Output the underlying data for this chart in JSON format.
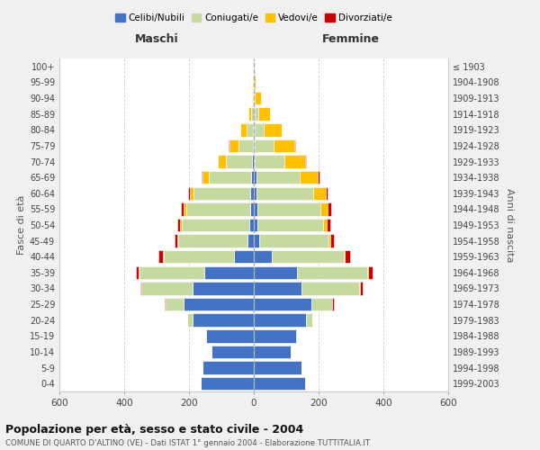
{
  "age_groups": [
    "0-4",
    "5-9",
    "10-14",
    "15-19",
    "20-24",
    "25-29",
    "30-34",
    "35-39",
    "40-44",
    "45-49",
    "50-54",
    "55-59",
    "60-64",
    "65-69",
    "70-74",
    "75-79",
    "80-84",
    "85-89",
    "90-94",
    "95-99",
    "100+"
  ],
  "birth_years": [
    "1999-2003",
    "1994-1998",
    "1989-1993",
    "1984-1988",
    "1979-1983",
    "1974-1978",
    "1969-1973",
    "1964-1968",
    "1959-1963",
    "1954-1958",
    "1949-1953",
    "1944-1948",
    "1939-1943",
    "1934-1938",
    "1929-1933",
    "1924-1928",
    "1919-1923",
    "1914-1918",
    "1909-1913",
    "1904-1908",
    "≤ 1903"
  ],
  "male_celibi": [
    165,
    158,
    130,
    148,
    188,
    218,
    188,
    152,
    60,
    20,
    15,
    12,
    10,
    8,
    5,
    3,
    2,
    0,
    0,
    0,
    0
  ],
  "male_coniugati": [
    0,
    0,
    0,
    2,
    18,
    55,
    158,
    202,
    218,
    212,
    208,
    196,
    176,
    130,
    80,
    45,
    20,
    8,
    2,
    1,
    0
  ],
  "male_vedovi": [
    0,
    0,
    0,
    0,
    0,
    0,
    0,
    1,
    2,
    3,
    5,
    8,
    12,
    20,
    25,
    28,
    20,
    10,
    3,
    1,
    0
  ],
  "male_divorziati": [
    0,
    0,
    0,
    0,
    0,
    2,
    5,
    10,
    15,
    10,
    8,
    8,
    5,
    3,
    2,
    1,
    0,
    0,
    0,
    0,
    0
  ],
  "female_celibi": [
    158,
    148,
    115,
    130,
    162,
    178,
    148,
    132,
    55,
    18,
    12,
    10,
    8,
    7,
    4,
    3,
    2,
    2,
    1,
    0,
    0
  ],
  "female_coniugati": [
    0,
    0,
    0,
    2,
    18,
    65,
    178,
    218,
    222,
    212,
    202,
    196,
    176,
    136,
    90,
    58,
    28,
    12,
    3,
    1,
    0
  ],
  "female_vedovi": [
    0,
    0,
    0,
    0,
    0,
    0,
    1,
    2,
    4,
    7,
    12,
    22,
    38,
    55,
    65,
    65,
    55,
    35,
    18,
    5,
    2
  ],
  "female_divorziati": [
    0,
    0,
    0,
    0,
    1,
    3,
    8,
    15,
    15,
    10,
    10,
    10,
    7,
    5,
    3,
    2,
    1,
    1,
    0,
    0,
    0
  ],
  "color_celibi": "#4472c4",
  "color_coniugati": "#c5d9a0",
  "color_vedovi": "#ffc000",
  "color_divorziati": "#cc0000",
  "xlim": 600,
  "title": "Popolazione per età, sesso e stato civile - 2004",
  "subtitle": "COMUNE DI QUARTO D'ALTINO (VE) - Dati ISTAT 1° gennaio 2004 - Elaborazione TUTTITALIA.IT",
  "ylabel": "Fasce di età",
  "right_ylabel": "Anni di nascita",
  "xlabel_left": "Maschi",
  "xlabel_right": "Femmine",
  "bg_color": "#f0f0f0",
  "plot_bg_color": "#ffffff",
  "legend_labels": [
    "Celibi/Nubili",
    "Coniugati/e",
    "Vedovi/e",
    "Divorziati/e"
  ]
}
